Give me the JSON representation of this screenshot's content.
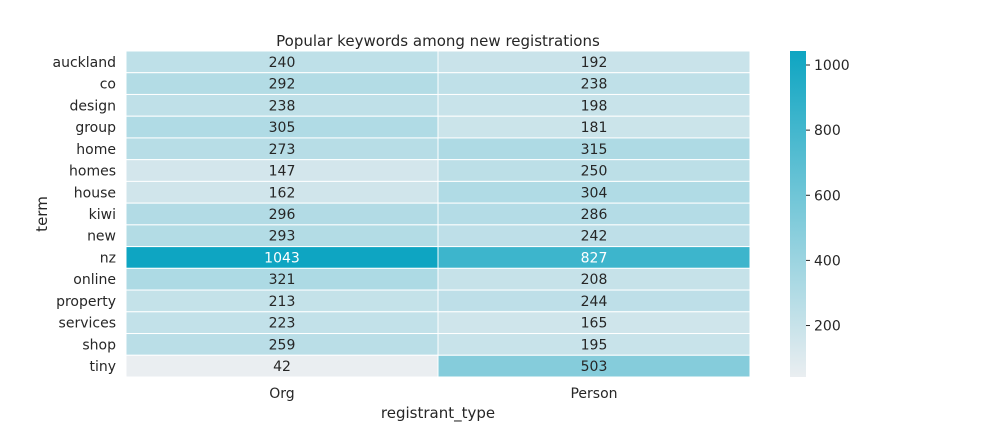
{
  "chart_data": {
    "type": "heatmap",
    "title": "Popular keywords among new registrations",
    "xlabel": "registrant_type",
    "ylabel": "term",
    "columns": [
      "Org",
      "Person"
    ],
    "rows": [
      "auckland",
      "co",
      "design",
      "group",
      "home",
      "homes",
      "house",
      "kiwi",
      "new",
      "nz",
      "online",
      "property",
      "services",
      "shop",
      "tiny"
    ],
    "values": [
      [
        240,
        192
      ],
      [
        292,
        238
      ],
      [
        238,
        198
      ],
      [
        305,
        181
      ],
      [
        273,
        315
      ],
      [
        147,
        250
      ],
      [
        162,
        304
      ],
      [
        296,
        286
      ],
      [
        293,
        242
      ],
      [
        1043,
        827
      ],
      [
        321,
        208
      ],
      [
        213,
        244
      ],
      [
        223,
        165
      ],
      [
        259,
        195
      ],
      [
        42,
        503
      ]
    ],
    "color_range": [
      42,
      1043
    ],
    "colors": {
      "low": "#eaeef1",
      "high": "#0ea5c2",
      "grid_line": "#ffffff"
    },
    "colorbar": {
      "ticks": [
        200,
        400,
        600,
        800,
        1000
      ]
    },
    "annotations": "cell values shown",
    "grid": false,
    "legend": "colorbar right"
  }
}
